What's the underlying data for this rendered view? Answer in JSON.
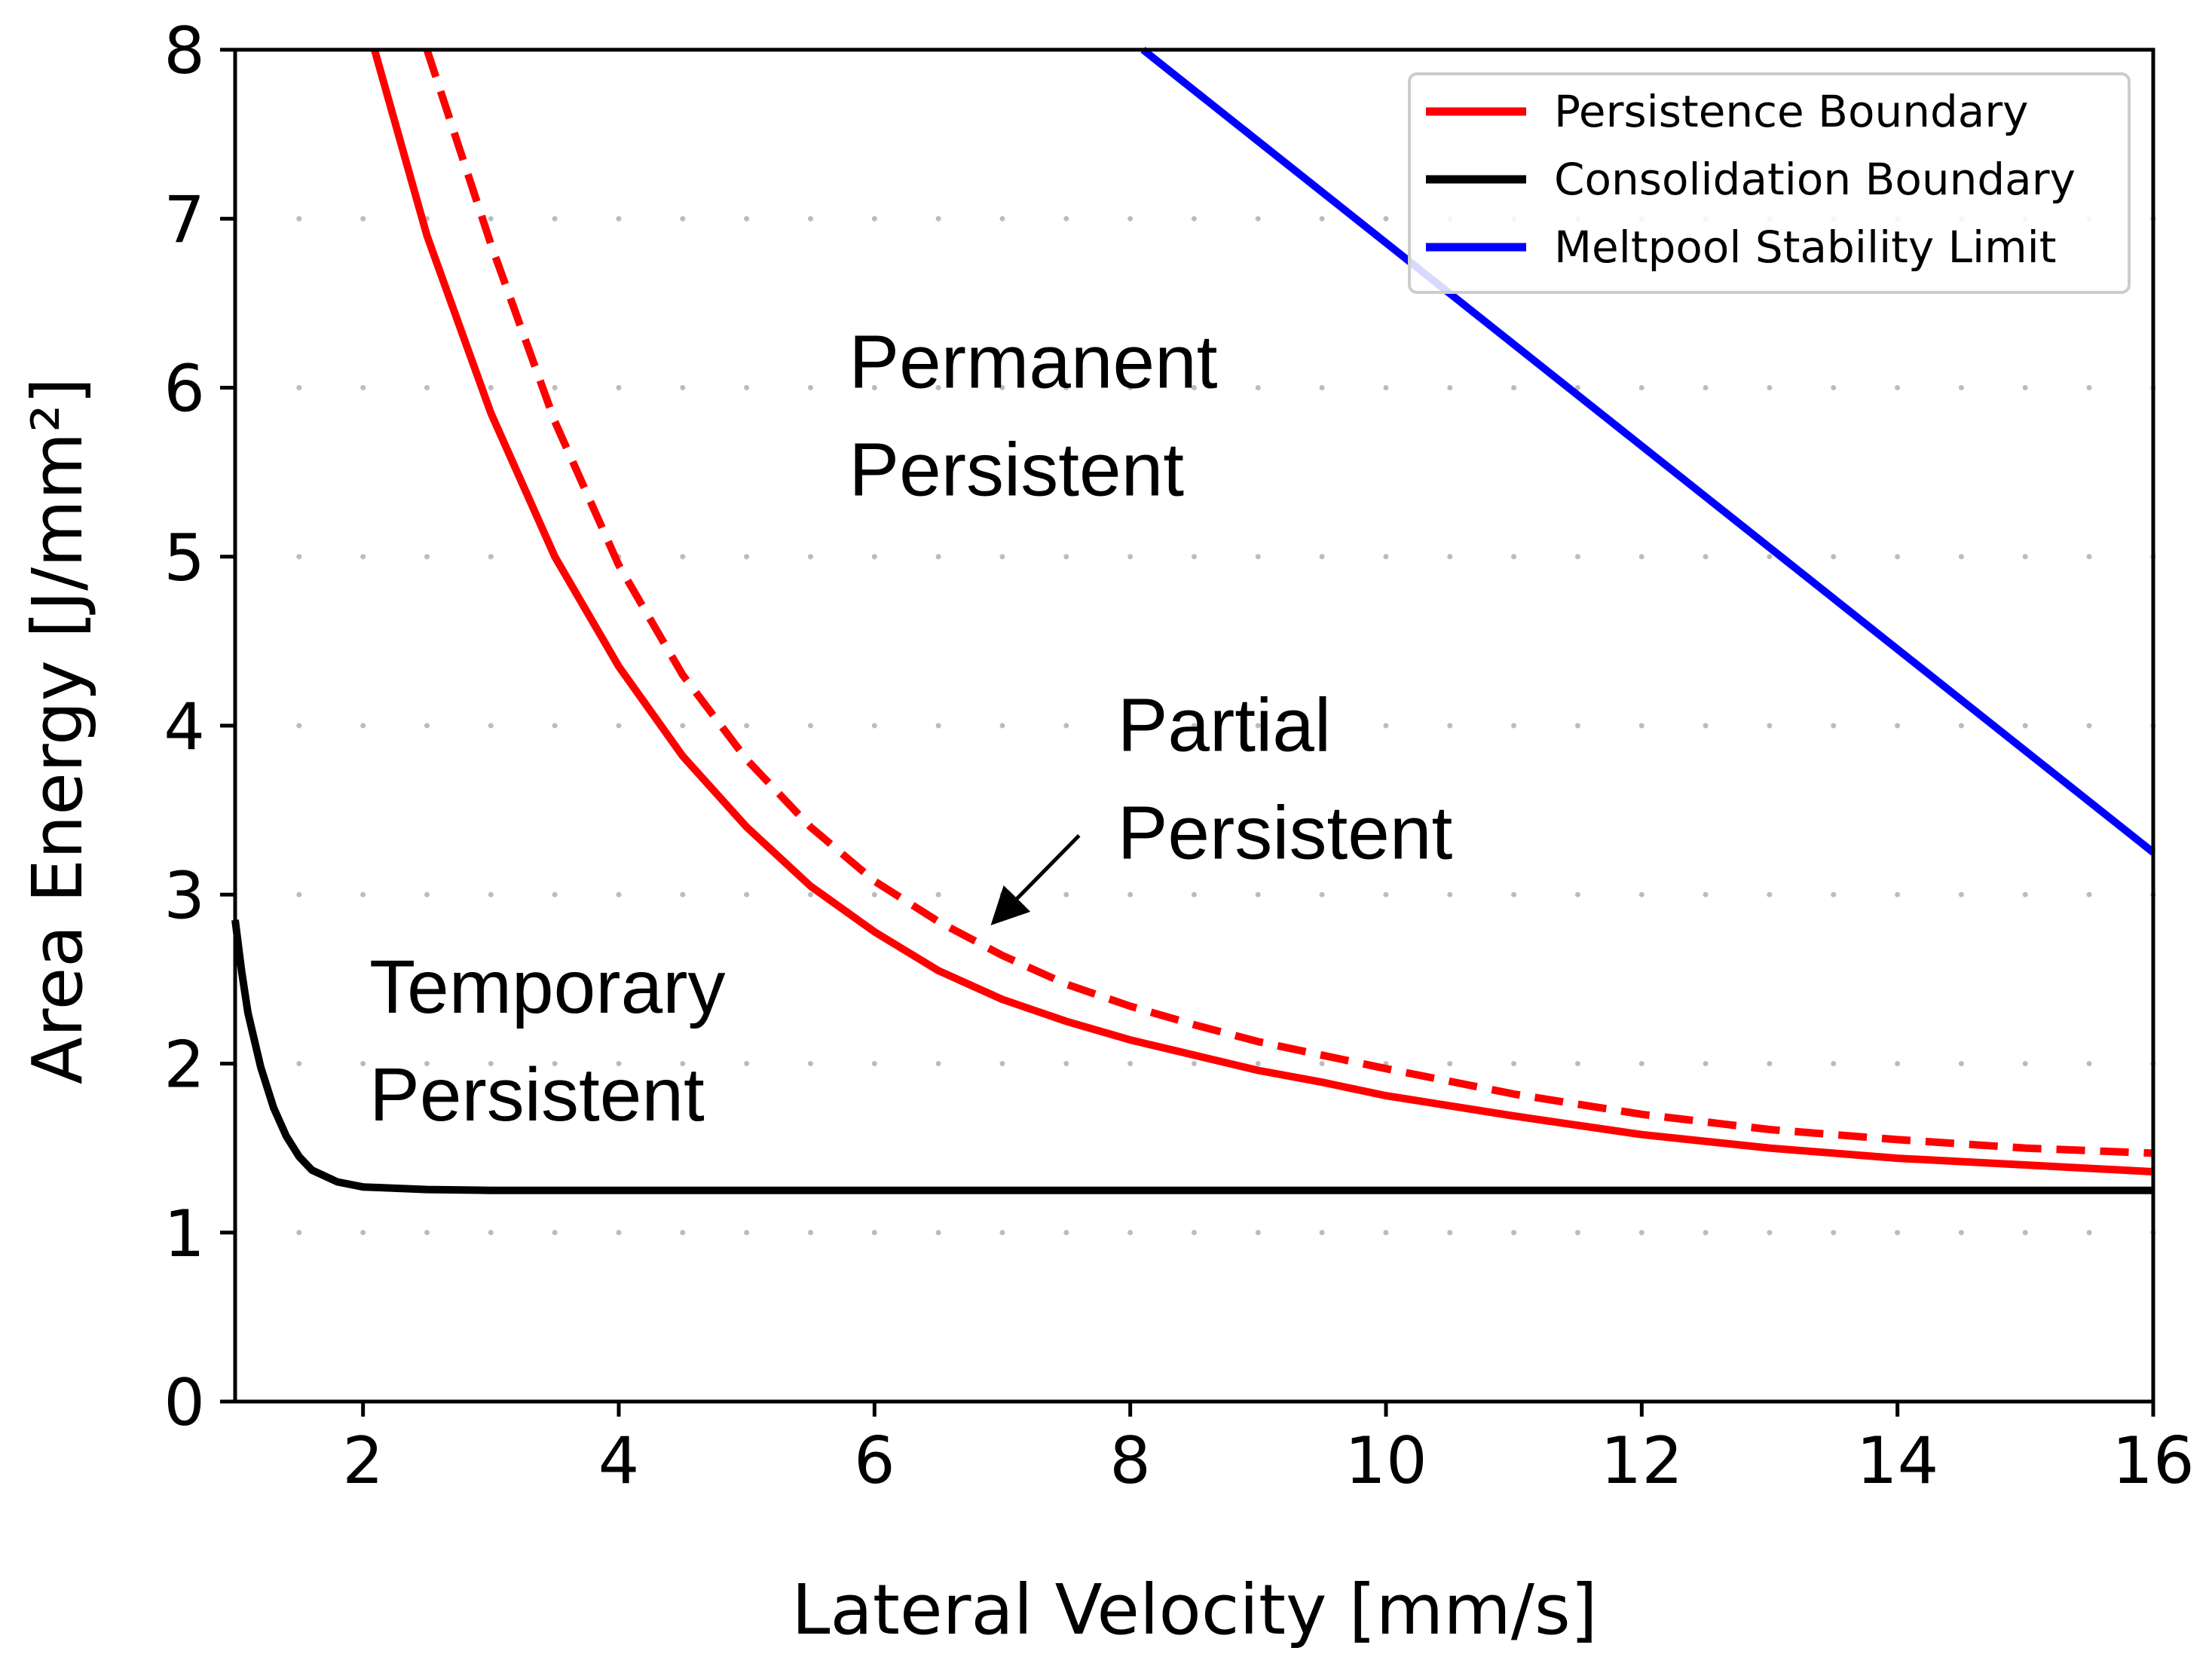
{
  "chart_data": {
    "type": "line",
    "xlabel": "Lateral Velocity [mm/s]",
    "ylabel": "Area Energy [J/mm²]",
    "xlim": [
      1,
      16
    ],
    "ylim": [
      0,
      8
    ],
    "xticks": [
      2,
      4,
      6,
      8,
      10,
      12,
      14,
      16
    ],
    "yticks": [
      0,
      1,
      2,
      3,
      4,
      5,
      6,
      7,
      8
    ],
    "grid": "dotted",
    "legend_position": "top-right",
    "series": [
      {
        "name": "Persistence Boundary",
        "color": "#ff0000",
        "style": "solid",
        "x": [
          2.09,
          2.5,
          3,
          3.5,
          4,
          4.5,
          5,
          5.5,
          6,
          6.5,
          7,
          7.5,
          8,
          8.5,
          9,
          9.5,
          10,
          11,
          12,
          13,
          14,
          15,
          16
        ],
        "y": [
          8.0,
          6.9,
          5.85,
          5.0,
          4.35,
          3.82,
          3.4,
          3.05,
          2.78,
          2.55,
          2.38,
          2.25,
          2.14,
          2.05,
          1.96,
          1.89,
          1.81,
          1.69,
          1.58,
          1.5,
          1.44,
          1.4,
          1.36
        ],
        "legend": true
      },
      {
        "name": "Persistence Boundary (upper)",
        "color": "#ff0000",
        "style": "dashed",
        "x": [
          2.5,
          3,
          3.5,
          4,
          4.5,
          5,
          5.5,
          6,
          6.5,
          7,
          7.5,
          8,
          8.5,
          9,
          9.5,
          10,
          11,
          12,
          13,
          14,
          15,
          16
        ],
        "y": [
          8.0,
          6.85,
          5.8,
          4.95,
          4.3,
          3.8,
          3.4,
          3.08,
          2.84,
          2.64,
          2.47,
          2.34,
          2.23,
          2.13,
          2.05,
          1.97,
          1.82,
          1.7,
          1.61,
          1.55,
          1.5,
          1.47
        ],
        "legend": false
      },
      {
        "name": "Consolidation Boundary",
        "color": "#000000",
        "style": "solid",
        "x": [
          1.0,
          1.05,
          1.1,
          1.2,
          1.3,
          1.4,
          1.5,
          1.6,
          1.8,
          2.0,
          2.5,
          3,
          4,
          6,
          8,
          10,
          12,
          14,
          16
        ],
        "y": [
          2.85,
          2.55,
          2.3,
          1.98,
          1.74,
          1.57,
          1.45,
          1.37,
          1.3,
          1.27,
          1.255,
          1.25,
          1.25,
          1.25,
          1.25,
          1.25,
          1.25,
          1.25,
          1.25
        ],
        "legend": true
      },
      {
        "name": "Meltpool Stability Limit",
        "color": "#0000ff",
        "style": "solid",
        "x": [
          8.1,
          16.0
        ],
        "y": [
          8.0,
          3.25
        ],
        "legend": true
      }
    ],
    "annotations": [
      {
        "lines": [
          "Permanent",
          "Persistent"
        ],
        "x": 5.8,
        "y": 6.0
      },
      {
        "lines": [
          "Partial",
          "Persistent"
        ],
        "x": 7.9,
        "y": 3.85
      },
      {
        "lines": [
          "Temporary",
          "Persistent"
        ],
        "x": 2.05,
        "y": 2.3
      }
    ],
    "arrow": {
      "from": [
        7.6,
        3.35
      ],
      "to": [
        6.95,
        2.85
      ]
    }
  }
}
